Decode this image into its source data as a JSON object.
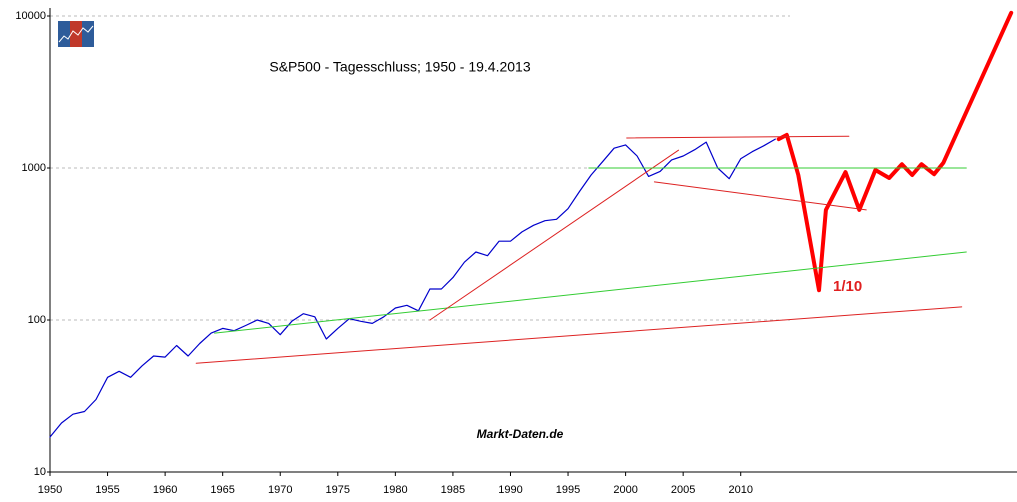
{
  "chart_data": {
    "type": "line",
    "title": "S&P500 - Tagesschluss; 1950 - 19.4.2013",
    "watermark": "Markt-Daten.de",
    "annotation": "1/10",
    "log_scale_y": true,
    "grid": true,
    "xlim": [
      1950,
      2034
    ],
    "ylim": [
      10,
      10000
    ],
    "xticks": [
      1950,
      1955,
      1960,
      1965,
      1970,
      1975,
      1980,
      1985,
      1990,
      1995,
      2000,
      2005,
      2010
    ],
    "yticks": [
      10,
      100,
      1000,
      10000
    ],
    "series": [
      {
        "color": "#0000cc",
        "width": 1.2,
        "x": [
          1950,
          1951,
          1952,
          1953,
          1954,
          1955,
          1956,
          1957,
          1958,
          1959,
          1960,
          1961,
          1962,
          1963,
          1964,
          1965,
          1966,
          1967,
          1968,
          1969,
          1970,
          1971,
          1972,
          1973,
          1974,
          1975,
          1976,
          1977,
          1978,
          1979,
          1980,
          1981,
          1982,
          1983,
          1984,
          1985,
          1986,
          1987,
          1988,
          1989,
          1990,
          1991,
          1992,
          1993,
          1994,
          1995,
          1996,
          1997,
          1998,
          1999,
          2000,
          2001,
          2002,
          2003,
          2004,
          2005,
          2006,
          2007,
          2008,
          2009,
          2010,
          2011,
          2012,
          2013
        ],
        "values": [
          17,
          21,
          24,
          25,
          30,
          42,
          46,
          42,
          50,
          58,
          57,
          68,
          58,
          70,
          82,
          88,
          85,
          92,
          100,
          95,
          80,
          98,
          110,
          105,
          75,
          88,
          102,
          98,
          95,
          105,
          120,
          125,
          115,
          160,
          160,
          190,
          240,
          280,
          265,
          330,
          330,
          380,
          420,
          450,
          460,
          540,
          700,
          900,
          1100,
          1350,
          1420,
          1200,
          880,
          950,
          1130,
          1200,
          1320,
          1480,
          1000,
          850,
          1150,
          1280,
          1400,
          1550
        ]
      },
      {
        "color": "#ff0000",
        "width": 4,
        "x": [
          2013.3,
          2014.0,
          2015.0,
          2016.8,
          2017.4,
          2019.1,
          2020.3,
          2021.7,
          2022.9,
          2024.0,
          2024.9,
          2025.7,
          2026.8,
          2027.6,
          2033.5
        ],
        "values": [
          1550,
          1650,
          900,
          157,
          530,
          940,
          530,
          970,
          860,
          1060,
          900,
          1060,
          910,
          1080,
          10500
        ]
      },
      {
        "color": "#dd2222",
        "width": 1,
        "x": [
          1962.7,
          2029.2
        ],
        "values": [
          52,
          122
        ]
      },
      {
        "color": "#33cc33",
        "width": 1,
        "x": [
          1964.3,
          2029.6
        ],
        "values": [
          82,
          280
        ]
      },
      {
        "color": "#dd2222",
        "width": 1,
        "x": [
          1983.0,
          2004.6
        ],
        "values": [
          100,
          1310
        ]
      },
      {
        "color": "#dd2222",
        "width": 1,
        "x": [
          2000.1,
          2019.4
        ],
        "values": [
          1575,
          1620
        ]
      },
      {
        "color": "#dd2222",
        "width": 1,
        "x": [
          2002.5,
          2020.9
        ],
        "values": [
          810,
          530
        ]
      },
      {
        "color": "#33cc33",
        "width": 1,
        "x": [
          1996.8,
          2029.6
        ],
        "values": [
          1000,
          1000
        ]
      }
    ]
  }
}
